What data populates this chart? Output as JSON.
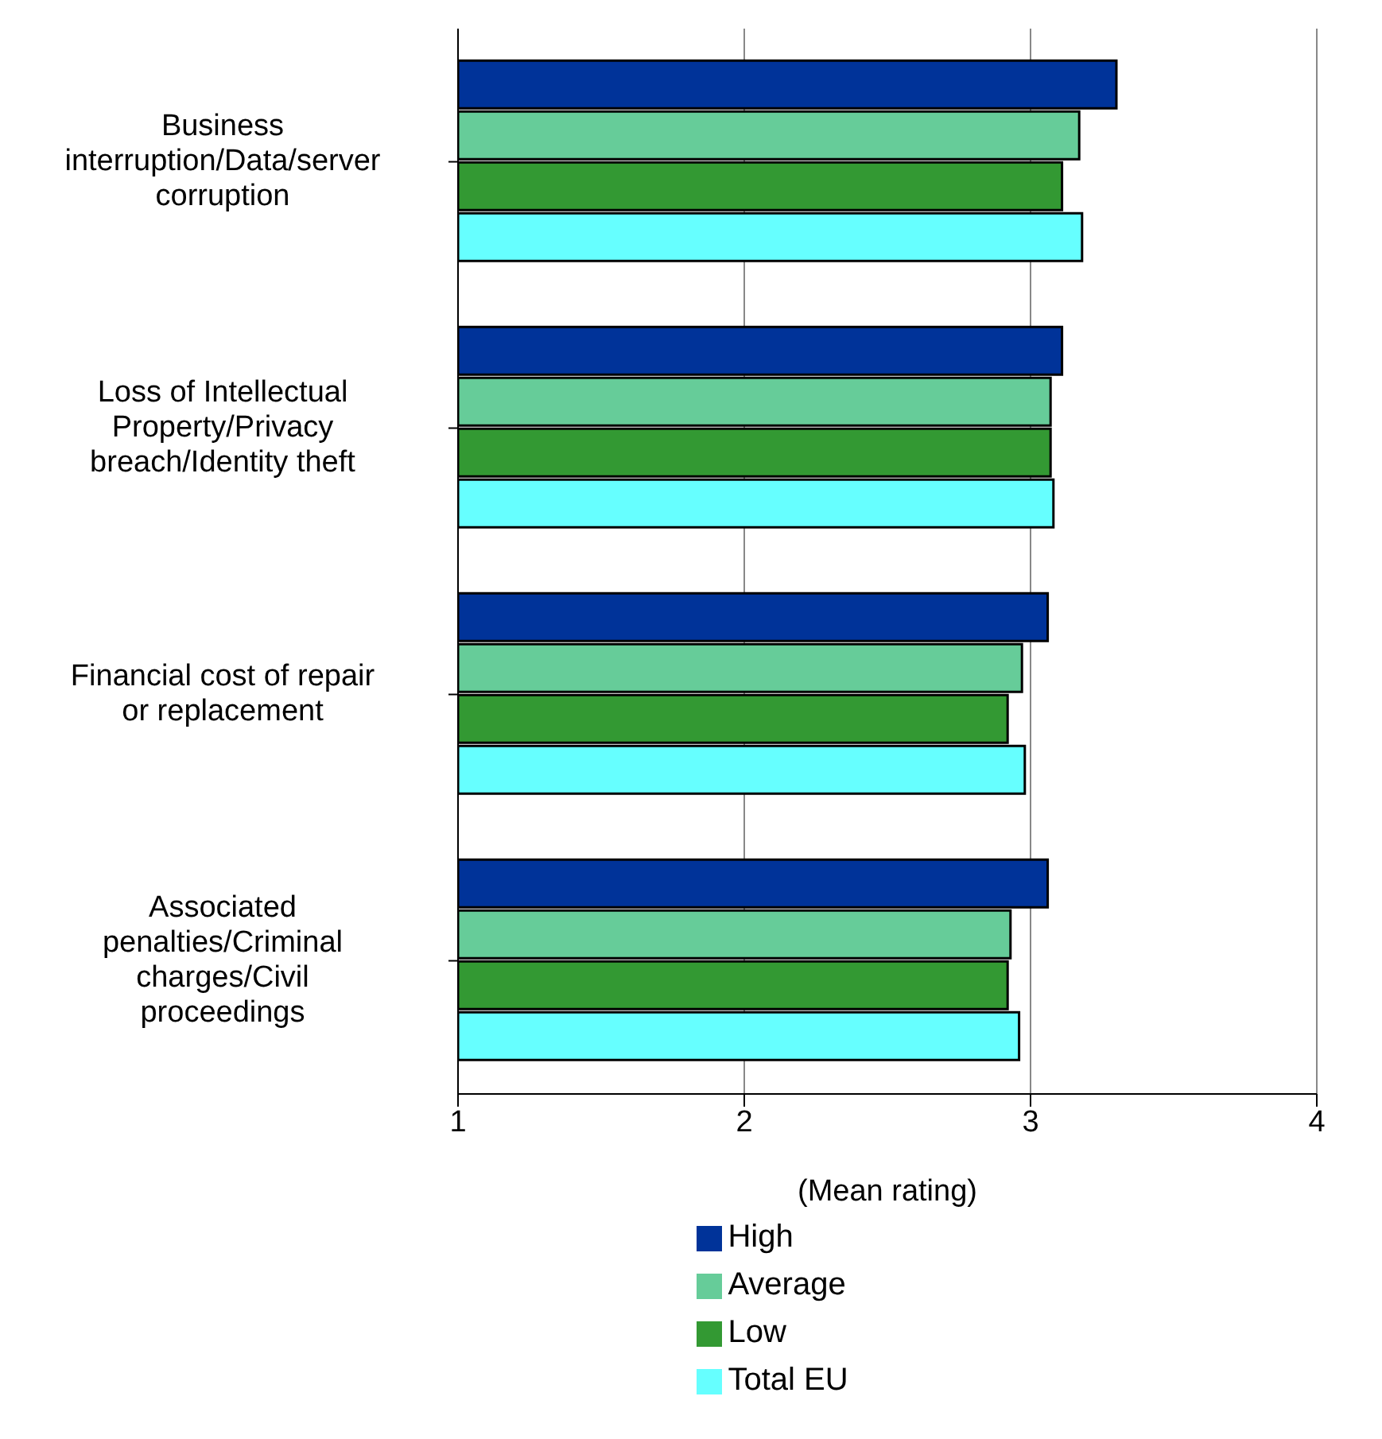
{
  "chart_data": {
    "type": "bar",
    "orientation": "horizontal",
    "xlabel": "(Mean rating)",
    "categories": [
      "Business interruption/Data/server corruption",
      "Loss of Intellectual Property/Privacy breach/Identity theft",
      "Financial cost of repair or replacement",
      "Associated penalties/Criminal charges/Civil proceedings"
    ],
    "series": [
      {
        "name": "High",
        "color": "#003399",
        "values": [
          3.3,
          3.11,
          3.06,
          3.06
        ]
      },
      {
        "name": "Average",
        "color": "#66cc99",
        "values": [
          3.17,
          3.07,
          2.97,
          2.93
        ]
      },
      {
        "name": "Low",
        "color": "#339933",
        "values": [
          3.11,
          3.07,
          2.92,
          2.92
        ]
      },
      {
        "name": "Total EU",
        "color": "#66ffff",
        "values": [
          3.18,
          3.08,
          2.98,
          2.96
        ]
      }
    ],
    "xlim": [
      1,
      4
    ],
    "xticks": [
      1,
      2,
      3,
      4
    ],
    "grid": "x",
    "legend": "bottom"
  }
}
